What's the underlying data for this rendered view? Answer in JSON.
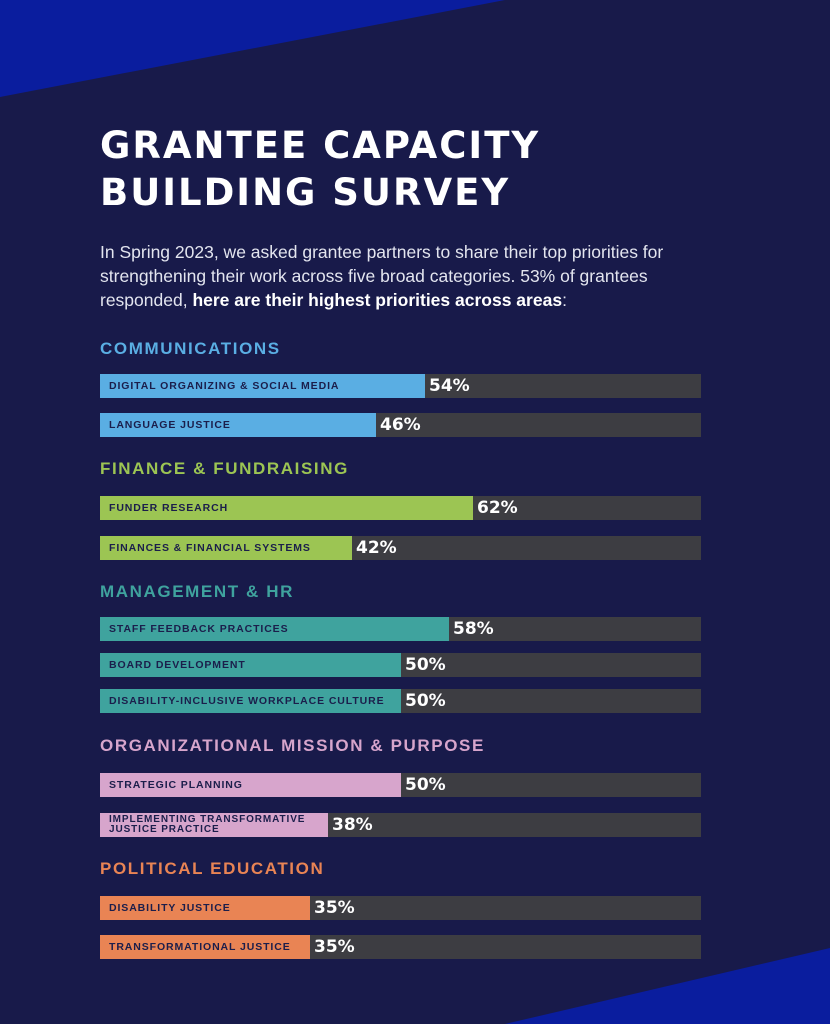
{
  "header": {
    "title_line1": "GRANTEE CAPACITY",
    "title_line2": "BUILDING SURVEY"
  },
  "intro": {
    "text_plain": "In Spring 2023, we asked grantee partners to share their top priorities for strengthening their work across five broad categories. 53% of grantees responded, ",
    "text_bold": "here are their highest priorities across areas",
    "text_end": ":"
  },
  "colors": {
    "background": "#181a4a",
    "corner_accent": "#0a1d9e",
    "track": "#3d3d42",
    "communications": "#5aaee3",
    "finance": "#9cc553",
    "management": "#3fa39e",
    "mission": "#d7a5cc",
    "political": "#e98454"
  },
  "chart_data": {
    "type": "bar",
    "orientation": "horizontal",
    "xlim": [
      0,
      100
    ],
    "unit": "%",
    "groups": [
      {
        "name": "COMMUNICATIONS",
        "color": "#5aaee3",
        "items": [
          {
            "label": "DIGITAL ORGANIZING & SOCIAL MEDIA",
            "value": 54,
            "value_label": "54%"
          },
          {
            "label": "LANGUAGE JUSTICE",
            "value": 46,
            "value_label": "46%"
          }
        ]
      },
      {
        "name": "FINANCE & FUNDRAISING",
        "color": "#9cc553",
        "items": [
          {
            "label": "FUNDER RESEARCH",
            "value": 62,
            "value_label": "62%"
          },
          {
            "label": "FINANCES & FINANCIAL SYSTEMS",
            "value": 42,
            "value_label": "42%"
          }
        ]
      },
      {
        "name": "MANAGEMENT & HR",
        "color": "#3fa39e",
        "items": [
          {
            "label": "STAFF FEEDBACK PRACTICES",
            "value": 58,
            "value_label": "58%"
          },
          {
            "label": "BOARD DEVELOPMENT",
            "value": 50,
            "value_label": "50%"
          },
          {
            "label": "DISABILITY-INCLUSIVE WORKPLACE CULTURE",
            "value": 50,
            "value_label": "50%"
          }
        ]
      },
      {
        "name": "ORGANIZATIONAL MISSION & PURPOSE",
        "color": "#d7a5cc",
        "items": [
          {
            "label": "STRATEGIC PLANNING",
            "value": 50,
            "value_label": "50%"
          },
          {
            "label": "IMPLEMENTING TRANSFORMATIVE JUSTICE PRACTICE",
            "value": 38,
            "value_label": "38%"
          }
        ]
      },
      {
        "name": "POLITICAL EDUCATION",
        "color": "#e98454",
        "items": [
          {
            "label": "DISABILITY JUSTICE",
            "value": 35,
            "value_label": "35%"
          },
          {
            "label": "TRANSFORMATIONAL JUSTICE",
            "value": 35,
            "value_label": "35%"
          }
        ]
      }
    ]
  }
}
